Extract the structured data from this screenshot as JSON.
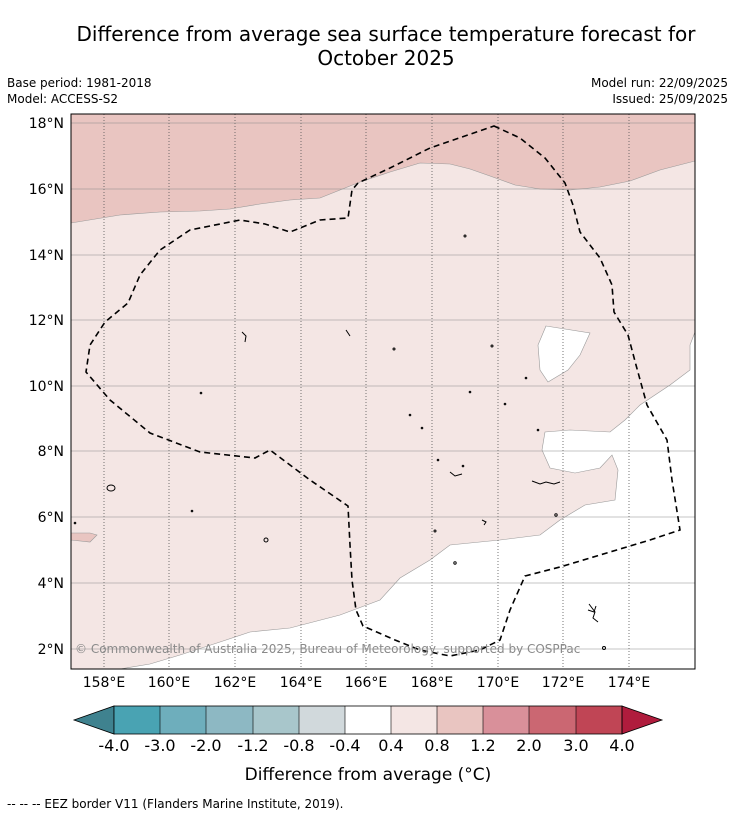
{
  "title_line1": "Difference from average sea surface temperature forecast for",
  "title_line2": "October 2025",
  "meta": {
    "base_period": "Base period: 1981-2018",
    "model": "Model: ACCESS-S2",
    "model_run": "Model run: 22/09/2025",
    "issued": "Issued: 25/09/2025"
  },
  "map": {
    "lon_ticks": [
      "158°E",
      "160°E",
      "162°E",
      "164°E",
      "166°E",
      "168°E",
      "170°E",
      "172°E",
      "174°E"
    ],
    "lat_ticks": [
      "18°N",
      "16°N",
      "14°N",
      "12°N",
      "10°N",
      "8°N",
      "6°N",
      "4°N",
      "2°N"
    ],
    "lon_range": [
      157,
      176
    ],
    "lat_range": [
      1.4,
      18.3
    ],
    "copyright": "© Commonwealth of Australia 2025, Bureau of Meteorology, supported by COSPPac"
  },
  "colorbar": {
    "ticks": [
      "-4.0",
      "-3.0",
      "-2.0",
      "-1.2",
      "-0.8",
      "-0.4",
      "0.4",
      "0.8",
      "1.2",
      "2.0",
      "3.0",
      "4.0"
    ],
    "colors": [
      "#3f828f",
      "#49a3b3",
      "#6eaebc",
      "#8db8c3",
      "#a8c6cb",
      "#d1d9dc",
      "#ffffff",
      "#f4e6e4",
      "#e9c5c1",
      "#d9909a",
      "#cb6772",
      "#c04555",
      "#b01c3d"
    ],
    "label": "Difference from average (°C)"
  },
  "footnote": "--  --  -- EEZ border V11 (Flanders Marine Institute, 2019)."
}
